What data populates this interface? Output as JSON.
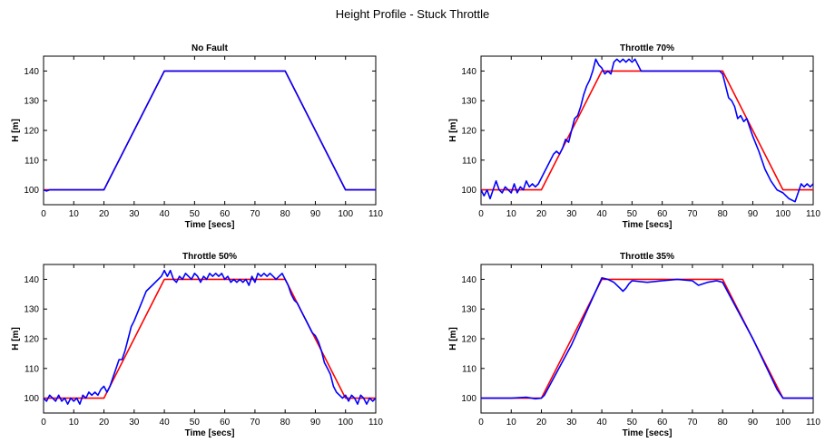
{
  "figure": {
    "title": "Height Profile - Stuck Throttle"
  },
  "colors": {
    "reference": "#ff0000",
    "actual": "#0000ff"
  },
  "chart_data": [
    {
      "type": "line",
      "title": "No Fault",
      "xlabel": "Time [secs]",
      "ylabel": "H [m]",
      "xlim": [
        0,
        110
      ],
      "ylim": [
        95,
        145
      ],
      "xticks": [
        0,
        10,
        20,
        30,
        40,
        50,
        60,
        70,
        80,
        90,
        100,
        110
      ],
      "yticks": [
        100,
        110,
        120,
        130,
        140
      ],
      "grid": false,
      "series": [
        {
          "x": [
            0,
            20,
            40,
            80,
            100,
            110
          ],
          "y": [
            100,
            100,
            140,
            140,
            100,
            100
          ],
          "color": "#ff0000"
        },
        {
          "x": [
            0,
            1,
            2,
            20,
            40,
            80,
            100,
            110
          ],
          "y": [
            100,
            99.6,
            100,
            100,
            140,
            140,
            100,
            100
          ],
          "color": "#0000ff"
        }
      ]
    },
    {
      "type": "line",
      "title": "Throttle 70%",
      "xlabel": "Time [secs]",
      "ylabel": "H [m]",
      "xlim": [
        0,
        110
      ],
      "ylim": [
        95,
        145
      ],
      "xticks": [
        0,
        10,
        20,
        30,
        40,
        50,
        60,
        70,
        80,
        90,
        100,
        110
      ],
      "yticks": [
        100,
        110,
        120,
        130,
        140
      ],
      "grid": false,
      "series": [
        {
          "x": [
            0,
            20,
            40,
            80,
            100,
            110
          ],
          "y": [
            100,
            100,
            140,
            140,
            100,
            100
          ],
          "color": "#ff0000"
        },
        {
          "x": [
            0,
            1,
            2,
            3,
            5,
            6,
            7,
            8,
            9,
            10,
            11,
            12,
            13,
            14,
            15,
            16,
            17,
            18,
            19,
            20,
            22,
            24,
            25,
            26,
            27,
            28,
            29,
            30,
            31,
            32,
            33,
            34,
            35,
            36,
            37,
            38,
            39,
            40,
            41,
            42,
            43,
            44,
            45,
            46,
            47,
            48,
            49,
            50,
            51,
            52,
            53,
            54,
            60,
            70,
            79,
            80,
            81,
            82,
            83,
            84,
            85,
            86,
            87,
            88,
            89,
            90,
            92,
            94,
            96,
            98,
            100,
            102,
            104,
            105,
            106,
            107,
            108,
            109,
            110
          ],
          "y": [
            100,
            98,
            100,
            97,
            103,
            100,
            99,
            101,
            100,
            99,
            102,
            99,
            101,
            100,
            103,
            101,
            102,
            101,
            102,
            104,
            108,
            112,
            113,
            112,
            114,
            117,
            116,
            120,
            124,
            125,
            128,
            132,
            135,
            137,
            140,
            144,
            142,
            141,
            139,
            140,
            139,
            143,
            144,
            143,
            144,
            143,
            144,
            143,
            144,
            142,
            140,
            140,
            140,
            140,
            140,
            139,
            135,
            131,
            130,
            128,
            124,
            125,
            123,
            124,
            121,
            118,
            113,
            107,
            103,
            100,
            99,
            97,
            96,
            99,
            102,
            101,
            102,
            101,
            102
          ],
          "color": "#0000ff"
        }
      ]
    },
    {
      "type": "line",
      "title": "Throttle 50%",
      "xlabel": "Time [secs]",
      "ylabel": "H [m]",
      "xlim": [
        0,
        110
      ],
      "ylim": [
        95,
        145
      ],
      "xticks": [
        0,
        10,
        20,
        30,
        40,
        50,
        60,
        70,
        80,
        90,
        100,
        110
      ],
      "yticks": [
        100,
        110,
        120,
        130,
        140
      ],
      "grid": false,
      "series": [
        {
          "x": [
            0,
            20,
            40,
            80,
            100,
            110
          ],
          "y": [
            100,
            100,
            140,
            140,
            100,
            100
          ],
          "color": "#ff0000"
        },
        {
          "x": [
            0,
            1,
            2,
            3,
            4,
            5,
            6,
            7,
            8,
            9,
            10,
            11,
            12,
            13,
            14,
            15,
            16,
            17,
            18,
            19,
            20,
            21,
            22,
            23,
            24,
            25,
            26,
            27,
            28,
            29,
            30,
            32,
            34,
            36,
            38,
            39,
            40,
            41,
            42,
            43,
            44,
            45,
            46,
            47,
            48,
            49,
            50,
            51,
            52,
            53,
            54,
            55,
            56,
            57,
            58,
            59,
            60,
            61,
            62,
            63,
            64,
            65,
            66,
            67,
            68,
            69,
            70,
            71,
            72,
            73,
            74,
            75,
            76,
            77,
            78,
            79,
            80,
            81,
            82,
            83,
            84,
            85,
            86,
            87,
            88,
            89,
            90,
            91,
            92,
            93,
            94,
            95,
            96,
            97,
            98,
            99,
            100,
            101,
            102,
            103,
            104,
            105,
            106,
            107,
            108,
            109,
            110
          ],
          "y": [
            100,
            99,
            101,
            100,
            99,
            101,
            99,
            100,
            98,
            100,
            99,
            100,
            98,
            101,
            100,
            102,
            101,
            102,
            101,
            103,
            104,
            102,
            104,
            107,
            110,
            113,
            113,
            116,
            120,
            124,
            126,
            131,
            136,
            138,
            140,
            141,
            143,
            141,
            143,
            140,
            139,
            141,
            140,
            142,
            141,
            140,
            142,
            141,
            139,
            141,
            140,
            142,
            141,
            142,
            141,
            142,
            140,
            141,
            139,
            140,
            139,
            140,
            139,
            140,
            138,
            141,
            139,
            142,
            141,
            142,
            141,
            142,
            141,
            140,
            141,
            142,
            140,
            138,
            135,
            133,
            132,
            130,
            128,
            126,
            124,
            122,
            121,
            119,
            116,
            112,
            110,
            108,
            104,
            102,
            101,
            100,
            101,
            99,
            101,
            100,
            98,
            101,
            100,
            98,
            100,
            99,
            100
          ],
          "color": "#0000ff"
        }
      ]
    },
    {
      "type": "line",
      "title": "Throttle 35%",
      "xlabel": "Time [secs]",
      "ylabel": "H [m]",
      "xlim": [
        0,
        110
      ],
      "ylim": [
        95,
        145
      ],
      "xticks": [
        0,
        10,
        20,
        30,
        40,
        50,
        60,
        70,
        80,
        90,
        100,
        110
      ],
      "yticks": [
        100,
        110,
        120,
        130,
        140
      ],
      "grid": false,
      "series": [
        {
          "x": [
            0,
            20,
            40,
            80,
            100,
            110
          ],
          "y": [
            100,
            100,
            140,
            140,
            100,
            100
          ],
          "color": "#ff0000"
        },
        {
          "x": [
            0,
            5,
            10,
            15,
            18,
            20,
            21,
            30,
            38,
            40,
            42,
            44,
            46,
            47,
            48,
            49,
            50,
            55,
            60,
            65,
            70,
            72,
            75,
            78,
            80,
            90,
            98,
            100,
            110
          ],
          "y": [
            100,
            100,
            100,
            100.3,
            99.8,
            100,
            101,
            118,
            136,
            140.5,
            140,
            139,
            137,
            136,
            137,
            138.5,
            139.5,
            139,
            139.5,
            140,
            139.5,
            138,
            139,
            139.5,
            139,
            120,
            103,
            100,
            100
          ],
          "color": "#0000ff"
        }
      ]
    }
  ]
}
